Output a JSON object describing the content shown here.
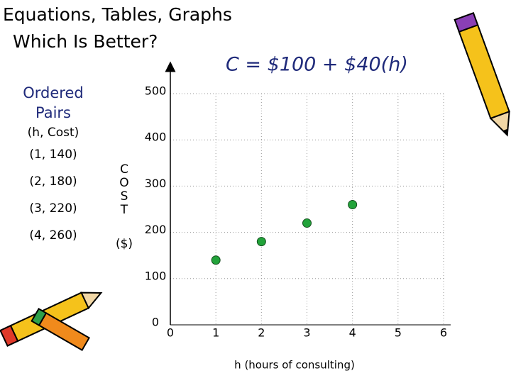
{
  "slide": {
    "title_lines": [
      "Equations, Tables, Graphs",
      "Which Is Better?"
    ],
    "formula": "C = $100 + $40(h)",
    "pairs_heading_lines": [
      "Ordered",
      "Pairs"
    ],
    "pairs_columns": "(h, Cost)",
    "pairs": [
      "(1, 140)",
      "(2, 180)",
      "(3, 220)",
      "(4, 260)"
    ]
  },
  "chart_data": {
    "type": "scatter",
    "x_label": "h (hours of consulting)",
    "y_label": "COST",
    "y_unit": "($)",
    "x": [
      1,
      2,
      3,
      4
    ],
    "values": [
      140,
      180,
      220,
      260
    ],
    "color": "#22a33a",
    "xlim": [
      0,
      6
    ],
    "ylim": [
      0,
      500
    ],
    "xticks": [
      0,
      1,
      2,
      3,
      4,
      5,
      6
    ],
    "yticks": [
      0,
      100,
      200,
      300,
      400,
      500
    ],
    "grid": true
  }
}
